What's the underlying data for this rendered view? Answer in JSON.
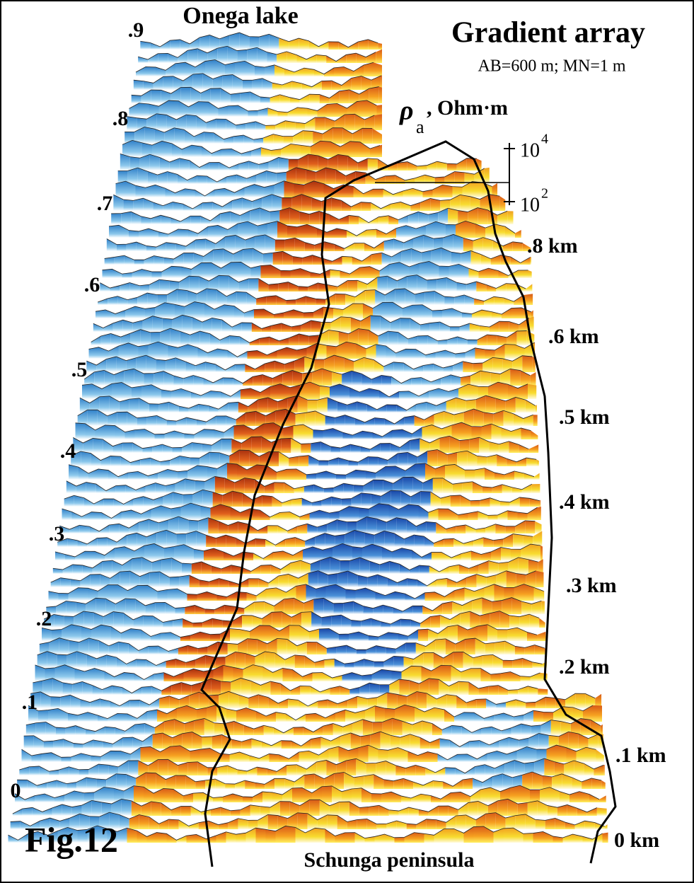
{
  "header": {
    "title": "Gradient array",
    "subtitle": "AB=600 m; MN=1 m",
    "top_label": "Onega lake",
    "bottom_label": "Schunga peninsula",
    "figure": "Fig.12"
  },
  "rho_label": {
    "symbol": "ρ",
    "subscript": "a",
    "unit": ", Ohm·m"
  },
  "scale": {
    "top": {
      "base": "10",
      "exp": "4"
    },
    "bottom": {
      "base": "10",
      "exp": "2"
    }
  },
  "left_axis": [
    ".9",
    ".8",
    ".7",
    ".6",
    ".5",
    ".4",
    ".3",
    ".2",
    ".1",
    "0"
  ],
  "right_axis": [
    ".8 km",
    ".6 km",
    ".5 km",
    ".4 km",
    ".3 km",
    ".2 km",
    ".1 km",
    "0 km"
  ]
}
